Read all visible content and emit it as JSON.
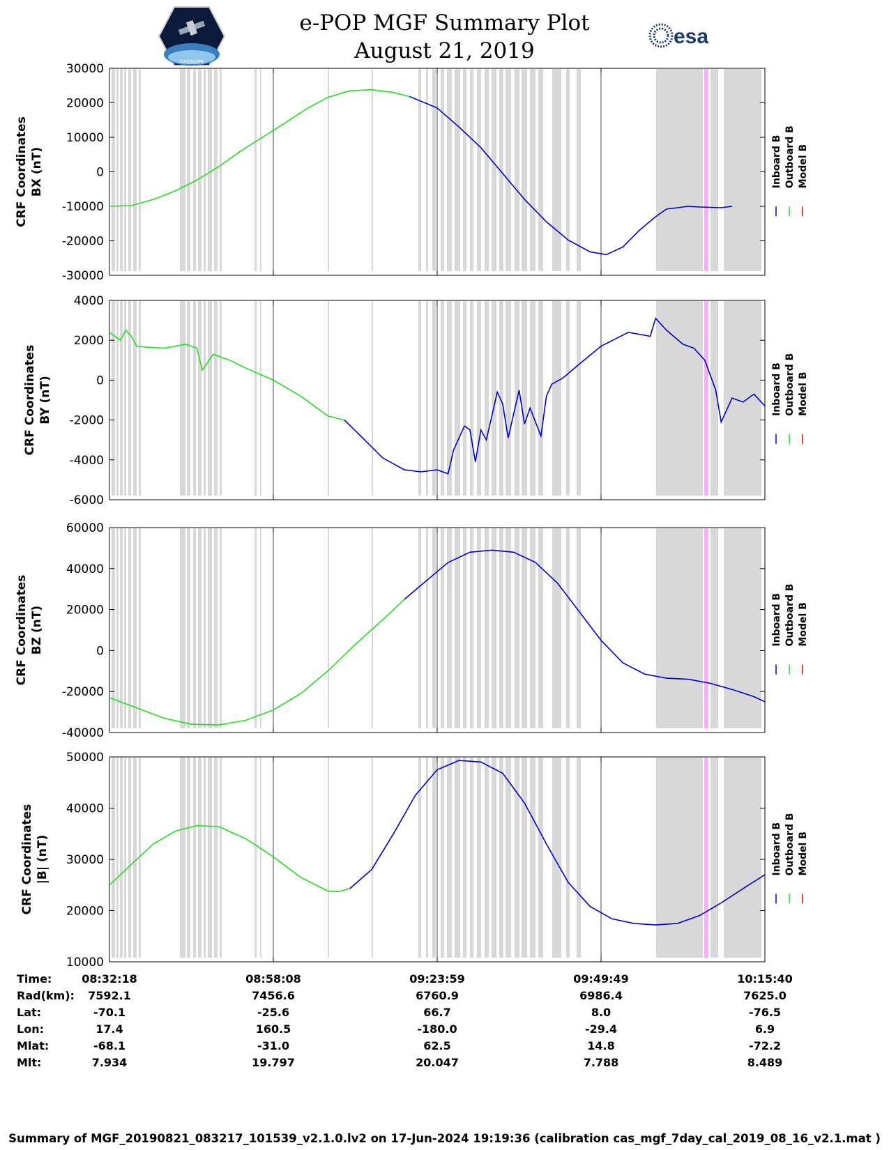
{
  "header": {
    "title_line1": "e-POP MGF Summary Plot",
    "title_line2": "August 21, 2019",
    "esa_logo_text": "esa",
    "cassiope_logo_text": "CASSIOPE",
    "colors": {
      "inboard": "#0000cc",
      "outboard": "#22dd22",
      "model": "#ee0000",
      "gap": "#d8d8d8",
      "highlight": "#f7b0f7"
    }
  },
  "legend": {
    "inboard": "Inboard B",
    "outboard": "Outboard B",
    "model": "Model B"
  },
  "chart_data": [
    {
      "type": "line",
      "ylabel_line1": "CRF Coordinates",
      "ylabel_line2": "BX (nT)",
      "ylim": [
        -30000,
        30000
      ],
      "yticks": [
        30000,
        20000,
        10000,
        0,
        -10000,
        -20000,
        -30000
      ],
      "series": [
        {
          "name": "Outboard B",
          "color": "#22dd22",
          "points": [
            [
              0,
              -10000
            ],
            [
              0.04,
              -9800
            ],
            [
              0.08,
              -8000
            ],
            [
              0.12,
              -5600
            ],
            [
              0.16,
              -2400
            ],
            [
              0.2,
              1500
            ],
            [
              0.24,
              6000
            ],
            [
              0.28,
              10000
            ],
            [
              0.32,
              14000
            ],
            [
              0.36,
              18200
            ],
            [
              0.4,
              21600
            ],
            [
              0.44,
              23500
            ],
            [
              0.48,
              23800
            ],
            [
              0.52,
              23000
            ],
            [
              0.55,
              21800
            ]
          ]
        },
        {
          "name": "Inboard B",
          "color": "#0000cc",
          "points": [
            [
              0.55,
              21800
            ],
            [
              0.6,
              18500
            ],
            [
              0.64,
              13000
            ],
            [
              0.68,
              7000
            ],
            [
              0.72,
              -500
            ],
            [
              0.76,
              -8000
            ],
            [
              0.8,
              -14500
            ],
            [
              0.84,
              -19800
            ],
            [
              0.88,
              -23200
            ],
            [
              0.91,
              -24000
            ],
            [
              0.94,
              -21800
            ],
            [
              0.97,
              -17000
            ],
            [
              1.0,
              -13000
            ],
            [
              1.02,
              -10800
            ],
            [
              1.06,
              -10000
            ],
            [
              1.08,
              -10200
            ],
            [
              1.12,
              -10400
            ],
            [
              1.14,
              -10000
            ]
          ]
        }
      ]
    },
    {
      "type": "line",
      "ylabel_line1": "CRF Coordinates",
      "ylabel_line2": "BY (nT)",
      "ylim": [
        -6000,
        4000
      ],
      "yticks": [
        4000,
        2000,
        0,
        -2000,
        -4000,
        -6000
      ],
      "series": [
        {
          "name": "Outboard B",
          "color": "#22dd22",
          "points": [
            [
              0,
              2400
            ],
            [
              0.02,
              2000
            ],
            [
              0.03,
              2500
            ],
            [
              0.04,
              2200
            ],
            [
              0.05,
              1700
            ],
            [
              0.07,
              1650
            ],
            [
              0.1,
              1600
            ],
            [
              0.12,
              1700
            ],
            [
              0.14,
              1800
            ],
            [
              0.16,
              1600
            ],
            [
              0.17,
              500
            ],
            [
              0.19,
              1300
            ],
            [
              0.22,
              1000
            ],
            [
              0.25,
              600
            ],
            [
              0.3,
              0
            ],
            [
              0.35,
              -800
            ],
            [
              0.4,
              -1800
            ],
            [
              0.43,
              -2000
            ]
          ]
        },
        {
          "name": "Inboard B",
          "color": "#0000cc",
          "points": [
            [
              0.43,
              -2000
            ],
            [
              0.46,
              -2800
            ],
            [
              0.5,
              -3900
            ],
            [
              0.54,
              -4500
            ],
            [
              0.57,
              -4600
            ],
            [
              0.6,
              -4500
            ],
            [
              0.62,
              -4700
            ],
            [
              0.63,
              -3500
            ],
            [
              0.65,
              -2300
            ],
            [
              0.66,
              -2500
            ],
            [
              0.67,
              -4100
            ],
            [
              0.68,
              -2500
            ],
            [
              0.69,
              -3000
            ],
            [
              0.71,
              -600
            ],
            [
              0.72,
              -1200
            ],
            [
              0.73,
              -2900
            ],
            [
              0.75,
              -500
            ],
            [
              0.76,
              -2200
            ],
            [
              0.77,
              -1400
            ],
            [
              0.79,
              -2800
            ],
            [
              0.8,
              -800
            ],
            [
              0.81,
              -200
            ],
            [
              0.83,
              100
            ],
            [
              0.86,
              800
            ],
            [
              0.9,
              1700
            ],
            [
              0.95,
              2400
            ],
            [
              0.99,
              2200
            ],
            [
              1.0,
              3100
            ],
            [
              1.02,
              2500
            ],
            [
              1.05,
              1800
            ],
            [
              1.07,
              1600
            ],
            [
              1.09,
              1000
            ],
            [
              1.11,
              -500
            ],
            [
              1.12,
              -2100
            ],
            [
              1.14,
              -900
            ],
            [
              1.16,
              -1100
            ],
            [
              1.18,
              -700
            ],
            [
              1.2,
              -1300
            ]
          ]
        }
      ]
    },
    {
      "type": "line",
      "ylabel_line1": "CRF Coordinates",
      "ylabel_line2": "BZ (nT)",
      "ylim": [
        -40000,
        60000
      ],
      "yticks": [
        60000,
        40000,
        20000,
        0,
        -20000,
        -40000
      ],
      "series": [
        {
          "name": "Outboard B",
          "color": "#22dd22",
          "points": [
            [
              0,
              -23000
            ],
            [
              0.05,
              -28000
            ],
            [
              0.1,
              -33000
            ],
            [
              0.15,
              -36000
            ],
            [
              0.2,
              -36300
            ],
            [
              0.25,
              -34000
            ],
            [
              0.3,
              -29000
            ],
            [
              0.35,
              -21000
            ],
            [
              0.4,
              -10000
            ],
            [
              0.45,
              3000
            ],
            [
              0.5,
              15000
            ],
            [
              0.54,
              25000
            ]
          ]
        },
        {
          "name": "Inboard B",
          "color": "#0000cc",
          "points": [
            [
              0.54,
              25000
            ],
            [
              0.58,
              34000
            ],
            [
              0.62,
              43000
            ],
            [
              0.66,
              48000
            ],
            [
              0.7,
              49000
            ],
            [
              0.74,
              48000
            ],
            [
              0.78,
              43000
            ],
            [
              0.82,
              33000
            ],
            [
              0.86,
              19000
            ],
            [
              0.9,
              5000
            ],
            [
              0.94,
              -6000
            ],
            [
              0.98,
              -11500
            ],
            [
              1.02,
              -13500
            ],
            [
              1.06,
              -14000
            ],
            [
              1.1,
              -16000
            ],
            [
              1.14,
              -19000
            ],
            [
              1.18,
              -22500
            ],
            [
              1.2,
              -25000
            ]
          ]
        }
      ]
    },
    {
      "type": "line",
      "ylabel_line1": "CRF Coordinates",
      "ylabel_line2": "|B| (nT)",
      "ylim": [
        10000,
        50000
      ],
      "yticks": [
        50000,
        40000,
        30000,
        20000,
        10000
      ],
      "series": [
        {
          "name": "Outboard B",
          "color": "#22dd22",
          "points": [
            [
              0,
              25000
            ],
            [
              0.04,
              29000
            ],
            [
              0.08,
              33000
            ],
            [
              0.12,
              35500
            ],
            [
              0.16,
              36600
            ],
            [
              0.2,
              36400
            ],
            [
              0.25,
              34000
            ],
            [
              0.3,
              30500
            ],
            [
              0.35,
              26500
            ],
            [
              0.4,
              23800
            ],
            [
              0.42,
              23700
            ],
            [
              0.44,
              24300
            ]
          ]
        },
        {
          "name": "Inboard B",
          "color": "#0000cc",
          "points": [
            [
              0.44,
              24300
            ],
            [
              0.48,
              28000
            ],
            [
              0.52,
              35000
            ],
            [
              0.56,
              42500
            ],
            [
              0.6,
              47500
            ],
            [
              0.64,
              49300
            ],
            [
              0.68,
              49000
            ],
            [
              0.72,
              46800
            ],
            [
              0.76,
              41000
            ],
            [
              0.8,
              33000
            ],
            [
              0.84,
              25500
            ],
            [
              0.88,
              20800
            ],
            [
              0.92,
              18400
            ],
            [
              0.96,
              17500
            ],
            [
              1.0,
              17200
            ],
            [
              1.04,
              17500
            ],
            [
              1.08,
              19000
            ],
            [
              1.12,
              21500
            ],
            [
              1.16,
              24300
            ],
            [
              1.2,
              27000
            ]
          ]
        }
      ]
    }
  ],
  "time_axis": {
    "labels": [
      "Time:",
      "Rad(km):",
      "Lat:",
      "Lon:",
      "Mlat:",
      "Mlt:"
    ],
    "columns": [
      [
        "08:32:18",
        "7592.1",
        "-70.1",
        "17.4",
        "-68.1",
        "7.934"
      ],
      [
        "08:58:08",
        "7456.6",
        "-25.6",
        "160.5",
        "-31.0",
        "19.797"
      ],
      [
        "09:23:59",
        "6760.9",
        "66.7",
        "-180.0",
        "62.5",
        "20.047"
      ],
      [
        "09:49:49",
        "6986.4",
        "8.0",
        "-29.4",
        "14.8",
        "7.788"
      ],
      [
        "10:15:40",
        "7625.0",
        "-76.5",
        "6.9",
        "-72.2",
        "8.489"
      ]
    ]
  },
  "footer": "Summary of MGF_20190821_083217_101539_v2.1.0.lv2 on 17-Jun-2024 19:19:36 (calibration cas_mgf_7day_cal_2019_08_16_v2.1.mat )"
}
